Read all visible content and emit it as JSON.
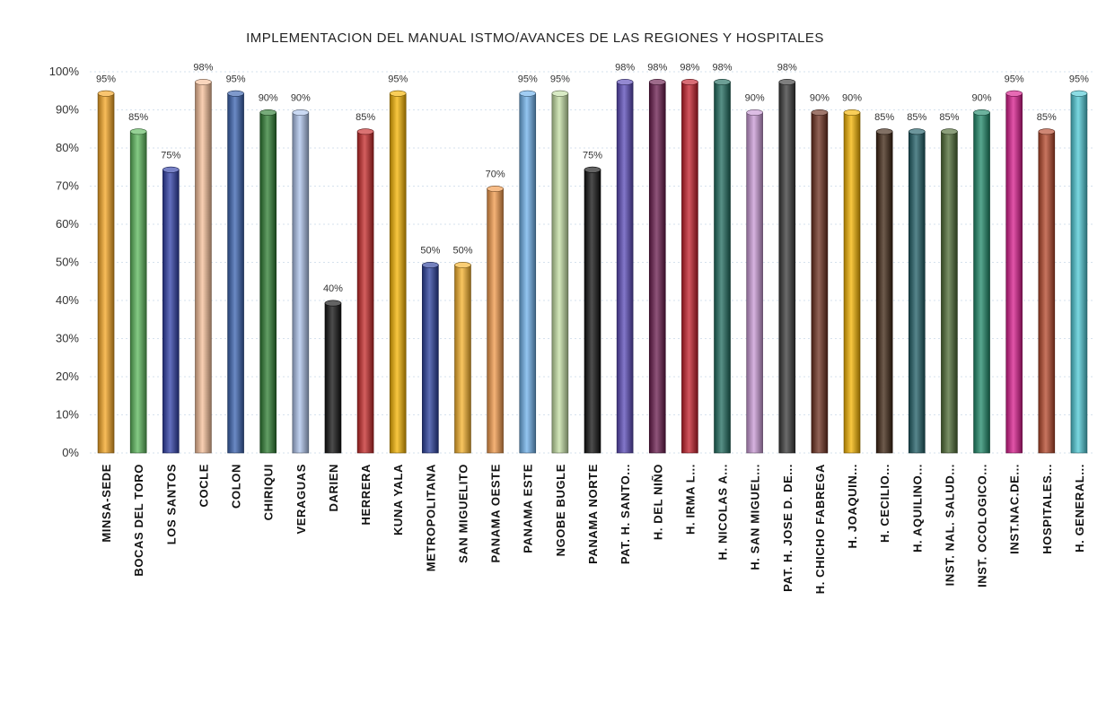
{
  "chart_data": {
    "type": "bar",
    "title": "IMPLEMENTACION DEL MANUAL ISTMO/AVANCES DE LAS REGIONES Y HOSPITALES",
    "xlabel": "",
    "ylabel": "",
    "ylim": [
      0,
      100
    ],
    "yticks": [
      "0%",
      "10%",
      "20%",
      "30%",
      "40%",
      "50%",
      "60%",
      "70%",
      "80%",
      "90%",
      "100%"
    ],
    "grid": true,
    "categories": [
      "MINSA-SEDE",
      "BOCAS DEL TORO",
      "LOS SANTOS",
      "COCLE",
      "COLON",
      "CHIRIQUI",
      "VERAGUAS",
      "DARIEN",
      "HERRERA",
      "KUNA YALA",
      "METROPOLITANA",
      "SAN MIGUELITO",
      "PANAMA OESTE",
      "PANAMA ESTE",
      "NGOBE BUGLE",
      "PANAMA NORTE",
      "PAT. H. SANTO...",
      "H. DEL NIÑO",
      "H. IRMA L...",
      "H. NICOLAS A...",
      "H. SAN MIGUEL...",
      "PAT. H. JOSE D. DE...",
      "H. CHICHO FABREGA",
      "H. JOAQUIN...",
      "H. CECILIO...",
      "H. AQUILINO...",
      "INST. NAL. SALUD...",
      "INST. OCOLOGICO...",
      "INST.NAC.DE...",
      "HOSPITALES...",
      "H. GENERAL..."
    ],
    "values": [
      95,
      85,
      75,
      98,
      95,
      90,
      90,
      40,
      85,
      95,
      50,
      50,
      70,
      95,
      95,
      75,
      98,
      98,
      98,
      98,
      90,
      98,
      90,
      90,
      85,
      85,
      85,
      90,
      95,
      85,
      95
    ],
    "value_labels": [
      "95%",
      "85%",
      "75%",
      "98%",
      "95%",
      "90%",
      "90%",
      "40%",
      "85%",
      "95%",
      "50%",
      "50%",
      "70%",
      "95%",
      "95%",
      "75%",
      "98%",
      "98%",
      "98%",
      "98%",
      "90%",
      "98%",
      "90%",
      "90%",
      "85%",
      "85%",
      "85%",
      "90%",
      "95%",
      "85%",
      "95%"
    ],
    "colors": [
      "#f5a623",
      "#5cb85c",
      "#2f3fa8",
      "#f8c09a",
      "#3a63b0",
      "#2e7d32",
      "#aec4ec",
      "#111111",
      "#c62828",
      "#f5b400",
      "#2a3f9c",
      "#f7b32b",
      "#f2994a",
      "#6fb2ec",
      "#c5e0a5",
      "#111111",
      "#5a49b8",
      "#6a1b4d",
      "#c41e2a",
      "#1f6b5e",
      "#c99ad6",
      "#3a3a3a",
      "#6d2f1f",
      "#f5b400",
      "#3e2412",
      "#1f5e66",
      "#4e6b34",
      "#1f8a6a",
      "#d81b8c",
      "#b5472a",
      "#4fc9d6"
    ]
  }
}
